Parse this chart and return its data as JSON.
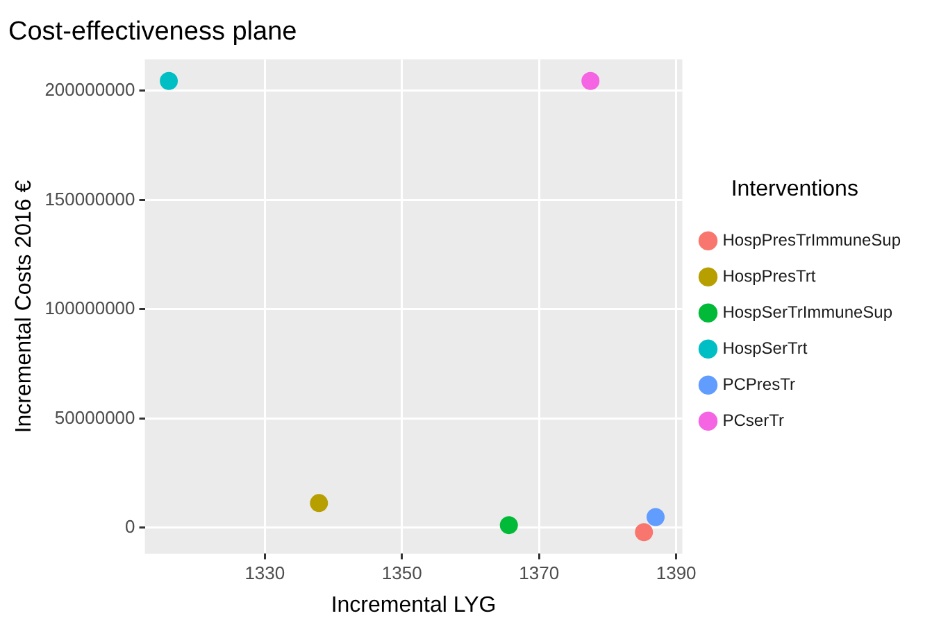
{
  "chart_data": {
    "type": "scatter",
    "title": "Cost-effectiveness plane",
    "xlabel": "Incremental LYG",
    "ylabel": "Incremental Costs 2016 €",
    "legend_title": "Interventions",
    "xlim": [
      1312.5,
      1390.9
    ],
    "xticks": [
      1330,
      1350,
      1370,
      1390
    ],
    "ylim": [
      -11900000,
      214400000
    ],
    "yticks": [
      0,
      50000000,
      100000000,
      150000000,
      200000000
    ],
    "grid": true,
    "legend": "right",
    "marker": "circle",
    "series": [
      {
        "name": "HospPresTrImmuneSup",
        "color": "#f8766d",
        "x": [
          1385.3
        ],
        "values": [
          -2000000
        ]
      },
      {
        "name": "HospPresTrt",
        "color": "#b79f00",
        "x": [
          1337.9
        ],
        "values": [
          11300000
        ]
      },
      {
        "name": "HospSerTrImmuneSup",
        "color": "#00ba38",
        "x": [
          1365.6
        ],
        "values": [
          1200000
        ]
      },
      {
        "name": "HospSerTrt",
        "color": "#00bfc4",
        "x": [
          1316.0
        ],
        "values": [
          204500000
        ]
      },
      {
        "name": "PCPresTr",
        "color": "#619cff",
        "x": [
          1387.0
        ],
        "values": [
          4900000
        ]
      },
      {
        "name": "PCserTr",
        "color": "#f564e3",
        "x": [
          1377.5
        ],
        "values": [
          204500000
        ]
      }
    ]
  }
}
